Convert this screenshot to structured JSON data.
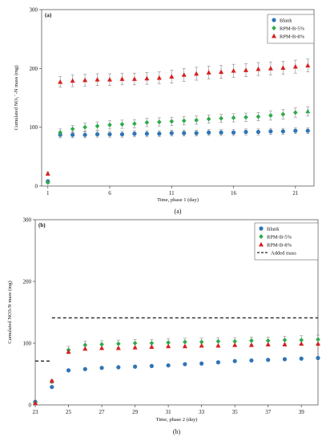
{
  "chart_data": [
    {
      "type": "scatter",
      "panel_label": "(a)",
      "caption": "(a)",
      "xlabel": "Time, phase 1 (day)",
      "ylabel": "Cumulated NO₃⁻-N mass (mg)",
      "xlim": [
        0.5,
        22.5
      ],
      "ylim": [
        0,
        300
      ],
      "xticks": [
        1,
        6,
        11,
        16,
        21
      ],
      "yticks": [
        0,
        100,
        200,
        300
      ],
      "x": [
        1,
        2,
        3,
        4,
        5,
        6,
        7,
        8,
        9,
        10,
        11,
        12,
        13,
        14,
        15,
        16,
        17,
        18,
        19,
        20,
        21,
        22
      ],
      "legend_position": "top-right",
      "series": [
        {
          "name": "Blank",
          "color": "#2e75b6",
          "marker": "circle",
          "values": [
            8,
            87,
            87,
            87,
            88,
            88,
            88,
            89,
            89,
            89,
            90,
            90,
            90,
            91,
            91,
            91,
            92,
            92,
            93,
            93,
            94,
            94
          ],
          "err": [
            2,
            5,
            5,
            5,
            5,
            5,
            5,
            5,
            5,
            5,
            5,
            5,
            5,
            5,
            5,
            5,
            5,
            5,
            5,
            5,
            5,
            5
          ]
        },
        {
          "name": "RPM-B-5%",
          "color": "#2eaa4a",
          "marker": "diamond",
          "values": [
            6,
            91,
            97,
            100,
            102,
            104,
            105,
            106,
            108,
            109,
            110,
            111,
            112,
            114,
            115,
            116,
            117,
            118,
            120,
            122,
            125,
            127
          ],
          "err": [
            2,
            6,
            6,
            7,
            7,
            7,
            7,
            7,
            7,
            7,
            7,
            7,
            7,
            7,
            7,
            7,
            7,
            7,
            8,
            8,
            8,
            8
          ],
          "end_marker": "triangle-up"
        },
        {
          "name": "RPM-B-8%",
          "color": "#d62020",
          "marker": "triangle",
          "values": [
            21,
            177,
            179,
            180,
            181,
            181,
            182,
            182,
            183,
            184,
            186,
            189,
            191,
            193,
            194,
            196,
            197,
            199,
            200,
            201,
            203,
            205
          ],
          "err": [
            3,
            9,
            10,
            10,
            10,
            10,
            10,
            10,
            10,
            10,
            11,
            11,
            11,
            11,
            11,
            11,
            11,
            11,
            11,
            11,
            11,
            11
          ]
        }
      ]
    },
    {
      "type": "scatter",
      "panel_label": "(b)",
      "caption": "(b)",
      "xlabel": "Time, phase 2 (day)",
      "ylabel": "Cumulated NO3-N mass (mg)",
      "xlim": [
        23,
        40
      ],
      "ylim": [
        0,
        300
      ],
      "xticks": [
        23,
        25,
        27,
        29,
        31,
        33,
        35,
        37,
        39
      ],
      "yticks": [
        0,
        100,
        200,
        300
      ],
      "x": [
        23,
        24,
        25,
        26,
        27,
        28,
        29,
        30,
        31,
        32,
        33,
        34,
        35,
        36,
        37,
        38,
        39,
        40
      ],
      "legend_position": "top-right",
      "series": [
        {
          "name": "Blank",
          "color": "#2e75b6",
          "marker": "circle",
          "values": [
            5,
            29,
            56,
            58,
            60,
            61,
            62,
            63,
            64,
            66,
            67,
            69,
            71,
            72,
            73,
            74,
            75,
            76
          ],
          "err": [
            0,
            0,
            0,
            0,
            0,
            0,
            0,
            0,
            0,
            0,
            0,
            0,
            0,
            0,
            0,
            0,
            0,
            0
          ]
        },
        {
          "name": "RPM-B-5%",
          "color": "#2eaa4a",
          "marker": "diamond",
          "values": [
            3,
            38,
            89,
            97,
            98,
            99,
            100,
            100,
            101,
            102,
            102,
            103,
            103,
            104,
            104,
            105,
            105,
            106
          ],
          "err": [
            1,
            3,
            6,
            6,
            6,
            6,
            6,
            6,
            6,
            6,
            6,
            6,
            6,
            6,
            6,
            6,
            7,
            7
          ]
        },
        {
          "name": "RPM-B-8%",
          "color": "#d62020",
          "marker": "triangle",
          "values": [
            3,
            39,
            86,
            91,
            92,
            92,
            93,
            94,
            95,
            95,
            96,
            96,
            97,
            97,
            98,
            98,
            99,
            99
          ],
          "err": [
            0,
            0,
            0,
            0,
            0,
            0,
            0,
            0,
            0,
            0,
            0,
            0,
            0,
            0,
            0,
            0,
            0,
            0
          ]
        }
      ],
      "reference_lines": {
        "name": "Added mass",
        "segments": [
          {
            "x0": 23,
            "x1": 24,
            "y": 71
          },
          {
            "x0": 24,
            "x1": 40,
            "y": 141
          }
        ]
      }
    }
  ]
}
